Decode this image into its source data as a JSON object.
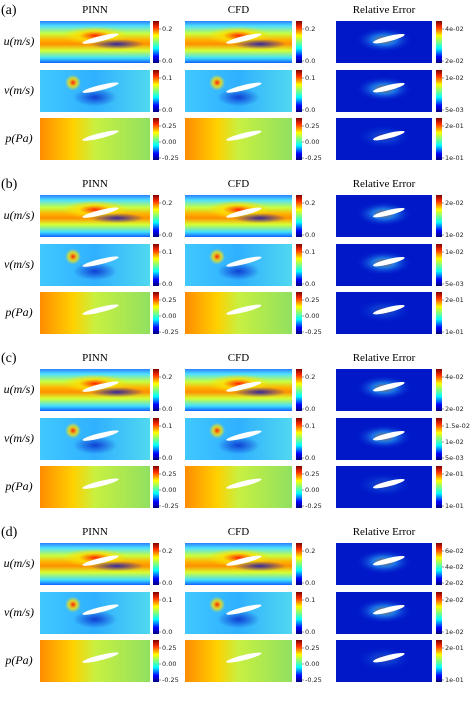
{
  "panels": [
    {
      "label": "(a)",
      "columns": [
        "PINN",
        "CFD",
        "Relative Error"
      ],
      "rows": [
        {
          "label": "u(m/s)",
          "colorbars": [
            [
              "0.2",
              "0.0"
            ],
            [
              "0.2",
              "0.0"
            ],
            [
              "4e-02",
              "2e-02"
            ]
          ]
        },
        {
          "label": "v(m/s)",
          "colorbars": [
            [
              "0.1",
              "0.0"
            ],
            [
              "0.1",
              "0.0"
            ],
            [
              "1e-02",
              "5e-03"
            ]
          ]
        },
        {
          "label": "p(Pa)",
          "colorbars": [
            [
              "0.25",
              "0.00",
              "-0.25"
            ],
            [
              "0.25",
              "0.00",
              "-0.25"
            ],
            [
              "2e-01",
              "1e-01"
            ]
          ]
        }
      ]
    },
    {
      "label": "(b)",
      "columns": [
        "PINN",
        "CFD",
        "Relative Error"
      ],
      "rows": [
        {
          "label": "u(m/s)",
          "colorbars": [
            [
              "0.2",
              "0.0"
            ],
            [
              "0.2",
              "0.0"
            ],
            [
              "2e-02",
              "1e-02"
            ]
          ]
        },
        {
          "label": "v(m/s)",
          "colorbars": [
            [
              "0.1",
              "0.0"
            ],
            [
              "0.1",
              "0.0"
            ],
            [
              "1e-02",
              "5e-03"
            ]
          ]
        },
        {
          "label": "p(Pa)",
          "colorbars": [
            [
              "0.25",
              "0.00",
              "-0.25"
            ],
            [
              "0.25",
              "0.00",
              "-0.25"
            ],
            [
              "2e-01",
              "1e-01"
            ]
          ]
        }
      ]
    },
    {
      "label": "(c)",
      "columns": [
        "PINN",
        "CFD",
        "Relative Error"
      ],
      "rows": [
        {
          "label": "u(m/s)",
          "colorbars": [
            [
              "0.2",
              "0.0"
            ],
            [
              "0.2",
              "0.0"
            ],
            [
              "4e-02",
              "2e-02"
            ]
          ]
        },
        {
          "label": "v(m/s)",
          "colorbars": [
            [
              "0.1",
              "0.0"
            ],
            [
              "0.1",
              "0.0"
            ],
            [
              "1.5e-02",
              "1e-02",
              "5e-03"
            ]
          ]
        },
        {
          "label": "p(Pa)",
          "colorbars": [
            [
              "0.25",
              "0.00",
              "-0.25"
            ],
            [
              "0.25",
              "0.00",
              "-0.25"
            ],
            [
              "2e-01",
              "1e-01"
            ]
          ]
        }
      ]
    },
    {
      "label": "(d)",
      "columns": [
        "PINN",
        "CFD",
        "Relative Error"
      ],
      "rows": [
        {
          "label": "u(m/s)",
          "colorbars": [
            [
              "0.2",
              "0.0"
            ],
            [
              "0.2",
              "0.0"
            ],
            [
              "6e-02",
              "4e-02",
              "2e-02"
            ]
          ]
        },
        {
          "label": "v(m/s)",
          "colorbars": [
            [
              "0.1",
              "0.0"
            ],
            [
              "0.1",
              "0.0"
            ],
            [
              "2e-02",
              "1e-02"
            ]
          ]
        },
        {
          "label": "p(Pa)",
          "colorbars": [
            [
              "0.25",
              "0.00",
              "-0.25"
            ],
            [
              "0.25",
              "0.00",
              "-0.25"
            ],
            [
              "2e-01",
              "1e-01"
            ]
          ]
        }
      ]
    }
  ]
}
